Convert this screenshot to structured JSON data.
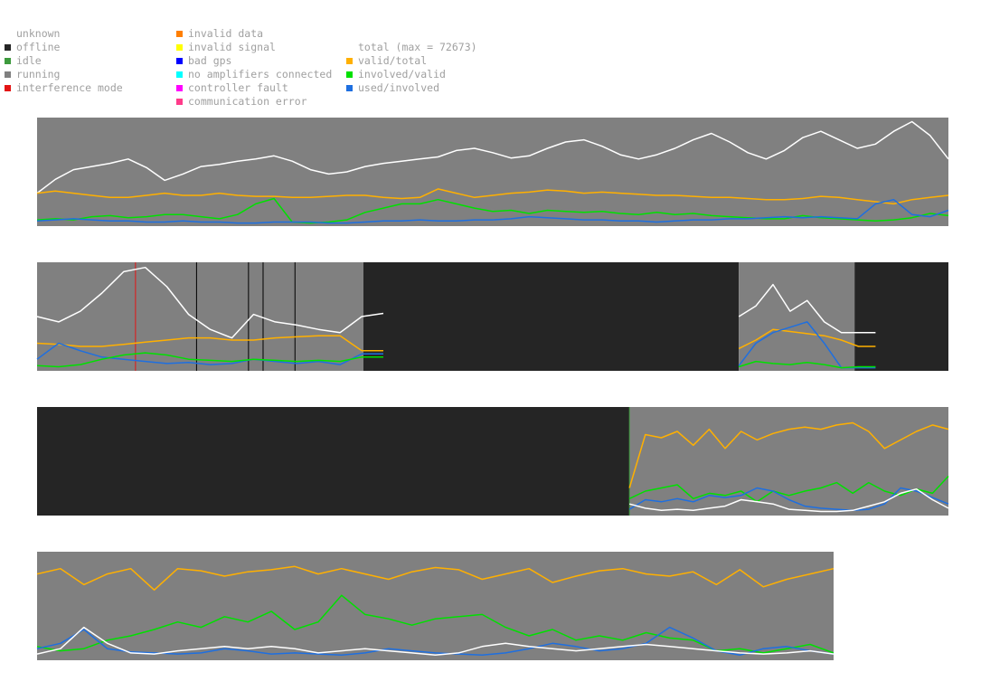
{
  "legend": {
    "status": [
      {
        "label": "unknown",
        "color": null
      },
      {
        "label": "offline",
        "color": "#252525"
      },
      {
        "label": "idle",
        "color": "#3d9a3d"
      },
      {
        "label": "running",
        "color": "#808080"
      },
      {
        "label": "interference mode",
        "color": "#e31414"
      }
    ],
    "faults": [
      {
        "label": "invalid data",
        "color": "#ff7f00"
      },
      {
        "label": "invalid signal",
        "color": "#ffff00"
      },
      {
        "label": "bad gps",
        "color": "#0000ff"
      },
      {
        "label": "no amplifiers connected",
        "color": "#00ffff"
      },
      {
        "label": "controller fault",
        "color": "#ff00ff"
      },
      {
        "label": "communication error",
        "color": "#ff3b8a"
      }
    ],
    "series": [
      {
        "label": "total (max = 72673)",
        "color": null
      },
      {
        "label": "valid/total",
        "color": "#ffb000"
      },
      {
        "label": "involved/valid",
        "color": "#00e000"
      },
      {
        "label": "used/involved",
        "color": "#1e6fe0"
      }
    ]
  },
  "colors": {
    "running": "#808080",
    "offline": "#252525",
    "total": "#ffffff",
    "valid_total": "#ffb000",
    "involved_valid": "#00e000",
    "used_involved": "#1e6fe0",
    "interference": "#e31414",
    "marker": "#000000",
    "idle_marker": "#3d9a3d"
  },
  "chart_data": [
    {
      "type": "line",
      "ylim": [
        0,
        1
      ],
      "status": [
        {
          "state": "running",
          "from": 0,
          "to": 1
        }
      ],
      "series": [
        {
          "key": "total",
          "values": [
            0.3,
            0.43,
            0.52,
            0.55,
            0.58,
            0.62,
            0.54,
            0.42,
            0.48,
            0.55,
            0.57,
            0.6,
            0.62,
            0.65,
            0.6,
            0.52,
            0.48,
            0.5,
            0.55,
            0.58,
            0.6,
            0.62,
            0.64,
            0.7,
            0.72,
            0.68,
            0.63,
            0.65,
            0.72,
            0.78,
            0.8,
            0.74,
            0.66,
            0.62,
            0.66,
            0.72,
            0.8,
            0.86,
            0.78,
            0.68,
            0.62,
            0.7,
            0.82,
            0.88,
            0.8,
            0.72,
            0.76,
            0.88,
            0.97,
            0.84,
            0.62
          ]
        },
        {
          "key": "valid_total",
          "values": [
            0.3,
            0.32,
            0.3,
            0.28,
            0.26,
            0.26,
            0.28,
            0.3,
            0.28,
            0.28,
            0.3,
            0.28,
            0.27,
            0.27,
            0.26,
            0.26,
            0.27,
            0.28,
            0.28,
            0.26,
            0.25,
            0.26,
            0.34,
            0.3,
            0.26,
            0.28,
            0.3,
            0.31,
            0.33,
            0.32,
            0.3,
            0.31,
            0.3,
            0.29,
            0.28,
            0.28,
            0.27,
            0.26,
            0.26,
            0.25,
            0.24,
            0.24,
            0.25,
            0.27,
            0.26,
            0.24,
            0.22,
            0.2,
            0.24,
            0.26,
            0.28
          ]
        },
        {
          "key": "involved_valid",
          "values": [
            0.05,
            0.06,
            0.05,
            0.08,
            0.09,
            0.07,
            0.08,
            0.1,
            0.1,
            0.08,
            0.06,
            0.1,
            0.2,
            0.25,
            0.03,
            0.02,
            0.03,
            0.05,
            0.12,
            0.16,
            0.2,
            0.2,
            0.24,
            0.2,
            0.16,
            0.13,
            0.14,
            0.11,
            0.14,
            0.13,
            0.12,
            0.13,
            0.11,
            0.1,
            0.12,
            0.1,
            0.11,
            0.09,
            0.08,
            0.07,
            0.06,
            0.06,
            0.09,
            0.07,
            0.06,
            0.05,
            0.04,
            0.05,
            0.07,
            0.11,
            0.09
          ]
        },
        {
          "key": "used_involved",
          "values": [
            0.04,
            0.05,
            0.06,
            0.05,
            0.04,
            0.04,
            0.03,
            0.03,
            0.04,
            0.03,
            0.03,
            0.02,
            0.02,
            0.03,
            0.03,
            0.03,
            0.02,
            0.02,
            0.03,
            0.04,
            0.04,
            0.05,
            0.04,
            0.04,
            0.05,
            0.05,
            0.06,
            0.08,
            0.07,
            0.06,
            0.05,
            0.05,
            0.04,
            0.04,
            0.03,
            0.04,
            0.05,
            0.05,
            0.06,
            0.06,
            0.07,
            0.08,
            0.07,
            0.08,
            0.07,
            0.06,
            0.2,
            0.24,
            0.1,
            0.08,
            0.14
          ]
        }
      ]
    },
    {
      "type": "line",
      "ylim": [
        0,
        1
      ],
      "status": [
        {
          "state": "running",
          "from": 0,
          "to": 0.358
        },
        {
          "state": "offline",
          "from": 0.358,
          "to": 0.77
        },
        {
          "state": "running",
          "from": 0.77,
          "to": 0.897
        },
        {
          "state": "offline",
          "from": 0.897,
          "to": 1
        }
      ],
      "events": [
        {
          "type": "interference",
          "at": 0.108
        },
        {
          "type": "marker",
          "at": 0.175
        },
        {
          "type": "marker",
          "at": 0.232
        },
        {
          "type": "marker",
          "at": 0.248
        },
        {
          "type": "marker",
          "at": 0.283
        }
      ],
      "segments": [
        {
          "from": 0,
          "to": 0.38,
          "series": [
            {
              "key": "total",
              "values": [
                0.5,
                0.45,
                0.55,
                0.72,
                0.92,
                0.96,
                0.78,
                0.52,
                0.38,
                0.3,
                0.52,
                0.45,
                0.42,
                0.38,
                0.35,
                0.5,
                0.53
              ]
            },
            {
              "key": "valid_total",
              "values": [
                0.25,
                0.24,
                0.22,
                0.22,
                0.24,
                0.26,
                0.28,
                0.3,
                0.3,
                0.28,
                0.28,
                0.3,
                0.31,
                0.32,
                0.32,
                0.18,
                0.18
              ]
            },
            {
              "key": "used_involved",
              "values": [
                0.1,
                0.25,
                0.18,
                0.12,
                0.1,
                0.08,
                0.06,
                0.07,
                0.05,
                0.06,
                0.1,
                0.08,
                0.06,
                0.08,
                0.05,
                0.15,
                0.15
              ]
            },
            {
              "key": "involved_valid",
              "values": [
                0.04,
                0.03,
                0.05,
                0.1,
                0.14,
                0.16,
                0.14,
                0.1,
                0.09,
                0.08,
                0.1,
                0.09,
                0.08,
                0.09,
                0.08,
                0.12,
                0.12
              ]
            }
          ]
        },
        {
          "from": 0.77,
          "to": 0.92,
          "series": [
            {
              "key": "total",
              "values": [
                0.5,
                0.6,
                0.8,
                0.55,
                0.65,
                0.45,
                0.35,
                0.35,
                0.35
              ]
            },
            {
              "key": "valid_total",
              "values": [
                0.2,
                0.28,
                0.38,
                0.36,
                0.34,
                0.32,
                0.28,
                0.22,
                0.22
              ]
            },
            {
              "key": "used_involved",
              "values": [
                0.04,
                0.25,
                0.35,
                0.4,
                0.45,
                0.25,
                0.02,
                0.02,
                0.02
              ]
            },
            {
              "key": "involved_valid",
              "values": [
                0.03,
                0.08,
                0.06,
                0.05,
                0.07,
                0.05,
                0.02,
                0.03,
                0.03
              ]
            }
          ]
        }
      ]
    },
    {
      "type": "line",
      "ylim": [
        0,
        1
      ],
      "status": [
        {
          "state": "offline",
          "from": 0,
          "to": 0.65
        },
        {
          "state": "running",
          "from": 0.65,
          "to": 1
        }
      ],
      "events": [
        {
          "type": "idle",
          "at": 0.65
        }
      ],
      "segments": [
        {
          "from": 0.65,
          "to": 1,
          "series": [
            {
              "key": "valid_total",
              "values": [
                0.25,
                0.75,
                0.72,
                0.78,
                0.65,
                0.8,
                0.62,
                0.78,
                0.7,
                0.76,
                0.8,
                0.82,
                0.8,
                0.84,
                0.86,
                0.78,
                0.62,
                0.7,
                0.78,
                0.84,
                0.8
              ]
            },
            {
              "key": "involved_valid",
              "values": [
                0.15,
                0.22,
                0.25,
                0.28,
                0.15,
                0.2,
                0.18,
                0.22,
                0.12,
                0.22,
                0.18,
                0.22,
                0.25,
                0.3,
                0.2,
                0.3,
                0.22,
                0.18,
                0.24,
                0.2,
                0.36
              ]
            },
            {
              "key": "used_involved",
              "values": [
                0.05,
                0.14,
                0.12,
                0.15,
                0.12,
                0.18,
                0.16,
                0.18,
                0.25,
                0.22,
                0.14,
                0.08,
                0.06,
                0.05,
                0.04,
                0.05,
                0.1,
                0.25,
                0.22,
                0.16,
                0.1
              ]
            },
            {
              "key": "total",
              "values": [
                0.1,
                0.06,
                0.04,
                0.05,
                0.04,
                0.06,
                0.08,
                0.14,
                0.12,
                0.1,
                0.05,
                0.04,
                0.03,
                0.03,
                0.04,
                0.08,
                0.12,
                0.2,
                0.24,
                0.14,
                0.06
              ]
            }
          ]
        }
      ]
    },
    {
      "type": "line",
      "ylim": [
        0,
        1
      ],
      "x_extent": 0.874,
      "status": [
        {
          "state": "running",
          "from": 0,
          "to": 0.874
        }
      ],
      "series": [
        {
          "key": "valid_total",
          "values": [
            0.8,
            0.85,
            0.7,
            0.8,
            0.85,
            0.65,
            0.85,
            0.83,
            0.78,
            0.82,
            0.84,
            0.87,
            0.8,
            0.85,
            0.8,
            0.75,
            0.82,
            0.86,
            0.84,
            0.75,
            0.8,
            0.85,
            0.72,
            0.78,
            0.83,
            0.85,
            0.8,
            0.78,
            0.82,
            0.7,
            0.84,
            0.68,
            0.75,
            0.8,
            0.85
          ]
        },
        {
          "key": "involved_valid",
          "values": [
            0.12,
            0.08,
            0.1,
            0.18,
            0.22,
            0.28,
            0.35,
            0.3,
            0.4,
            0.35,
            0.45,
            0.28,
            0.35,
            0.6,
            0.42,
            0.38,
            0.32,
            0.38,
            0.4,
            0.42,
            0.3,
            0.22,
            0.28,
            0.18,
            0.22,
            0.18,
            0.25,
            0.2,
            0.18,
            0.08,
            0.1,
            0.06,
            0.1,
            0.14,
            0.06
          ]
        },
        {
          "key": "used_involved",
          "values": [
            0.1,
            0.15,
            0.28,
            0.1,
            0.07,
            0.06,
            0.05,
            0.06,
            0.1,
            0.08,
            0.05,
            0.06,
            0.05,
            0.04,
            0.06,
            0.1,
            0.08,
            0.06,
            0.05,
            0.04,
            0.06,
            0.1,
            0.15,
            0.12,
            0.08,
            0.1,
            0.15,
            0.3,
            0.2,
            0.08,
            0.04,
            0.1,
            0.12,
            0.08,
            0.05
          ]
        },
        {
          "key": "total",
          "values": [
            0.05,
            0.1,
            0.3,
            0.15,
            0.06,
            0.05,
            0.08,
            0.1,
            0.12,
            0.1,
            0.12,
            0.1,
            0.06,
            0.08,
            0.1,
            0.08,
            0.06,
            0.04,
            0.06,
            0.12,
            0.15,
            0.12,
            0.1,
            0.08,
            0.1,
            0.12,
            0.14,
            0.12,
            0.1,
            0.08,
            0.06,
            0.05,
            0.06,
            0.08,
            0.05
          ]
        }
      ]
    }
  ]
}
